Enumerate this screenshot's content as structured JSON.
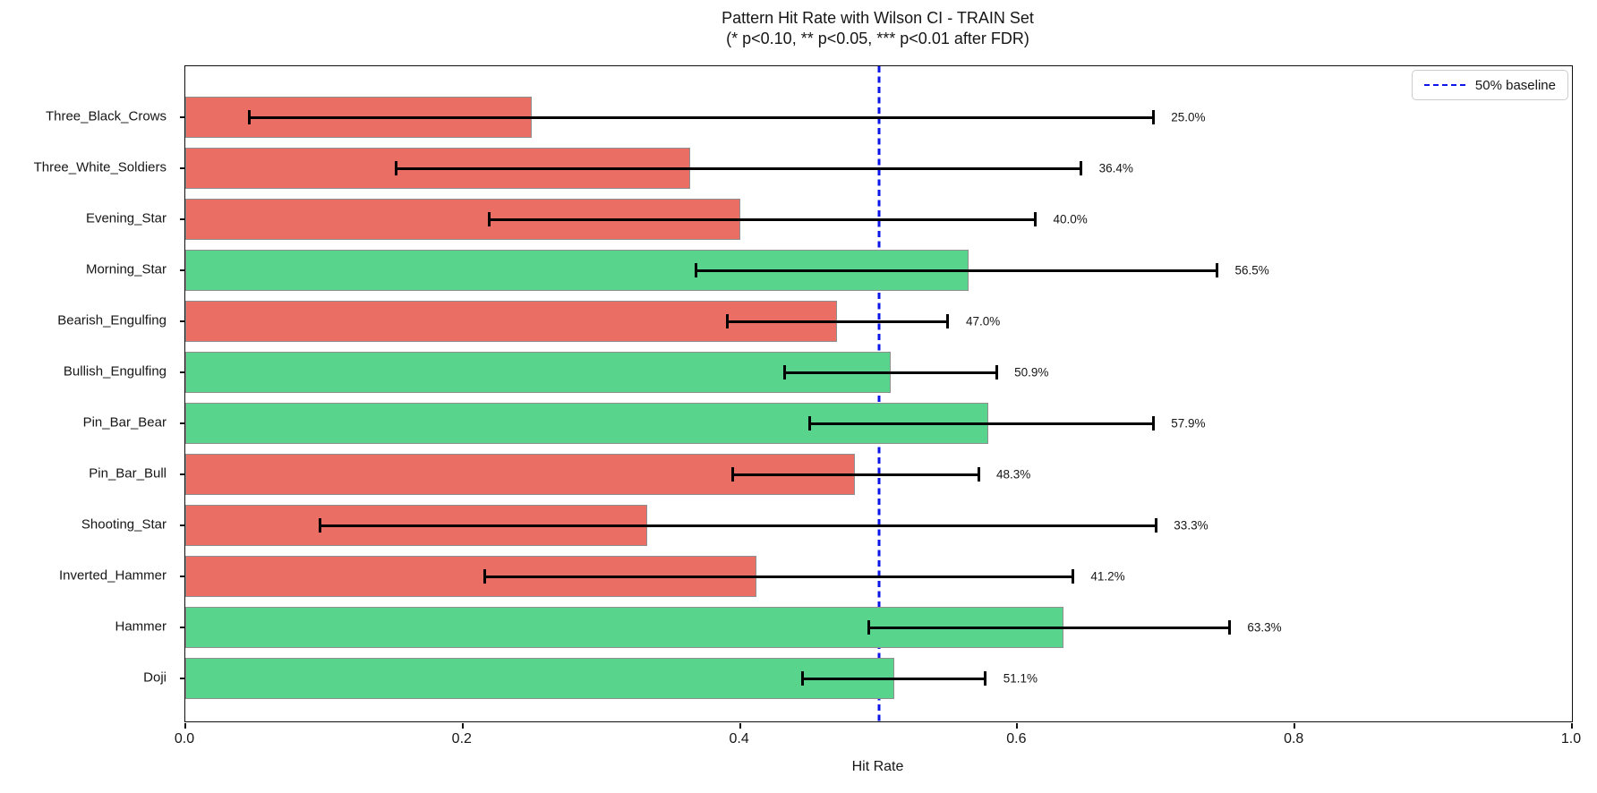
{
  "title": "Pattern Hit Rate with Wilson CI - TRAIN Set",
  "subtitle": "(* p<0.10, ** p<0.05, *** p<0.01 after FDR)",
  "xlabel": "Hit Rate",
  "legend": {
    "baseline_label": "50% baseline"
  },
  "colors": {
    "green": "#59d48c",
    "red": "#ea6e63",
    "bar_edge": "#8f8f8f",
    "baseline": "#0d16e8",
    "error_bar": "#000000"
  },
  "chart_data": {
    "type": "bar",
    "orientation": "horizontal",
    "title": "Pattern Hit Rate with Wilson CI - TRAIN Set",
    "subtitle": "(* p<0.10, ** p<0.05, *** p<0.01 after FDR)",
    "xlabel": "Hit Rate",
    "ylabel": "",
    "xlim": [
      0.0,
      1.0
    ],
    "x_ticks": [
      0.0,
      0.2,
      0.4,
      0.6,
      0.8,
      1.0
    ],
    "x_tick_labels": [
      "0.0",
      "0.2",
      "0.4",
      "0.6",
      "0.8",
      "1.0"
    ],
    "grid": false,
    "legend_position": "upper right",
    "baseline": {
      "x": 0.5,
      "label": "50% baseline",
      "style": "dashed",
      "color_key": "baseline"
    },
    "bars": [
      {
        "category": "Three_Black_Crows",
        "value": 0.25,
        "label": "25.0%",
        "ci_low": 0.046,
        "ci_high": 0.698,
        "color": "red"
      },
      {
        "category": "Three_White_Soldiers",
        "value": 0.364,
        "label": "36.4%",
        "ci_low": 0.152,
        "ci_high": 0.646,
        "color": "red"
      },
      {
        "category": "Evening_Star",
        "value": 0.4,
        "label": "40.0%",
        "ci_low": 0.219,
        "ci_high": 0.613,
        "color": "red"
      },
      {
        "category": "Morning_Star",
        "value": 0.565,
        "label": "56.5%",
        "ci_low": 0.368,
        "ci_high": 0.744,
        "color": "green"
      },
      {
        "category": "Bearish_Engulfing",
        "value": 0.47,
        "label": "47.0%",
        "ci_low": 0.391,
        "ci_high": 0.55,
        "color": "red"
      },
      {
        "category": "Bullish_Engulfing",
        "value": 0.509,
        "label": "50.9%",
        "ci_low": 0.432,
        "ci_high": 0.585,
        "color": "green"
      },
      {
        "category": "Pin_Bar_Bear",
        "value": 0.579,
        "label": "57.9%",
        "ci_low": 0.45,
        "ci_high": 0.698,
        "color": "green"
      },
      {
        "category": "Pin_Bar_Bull",
        "value": 0.483,
        "label": "48.3%",
        "ci_low": 0.395,
        "ci_high": 0.572,
        "color": "red"
      },
      {
        "category": "Shooting_Star",
        "value": 0.333,
        "label": "33.3%",
        "ci_low": 0.097,
        "ci_high": 0.7,
        "color": "red"
      },
      {
        "category": "Inverted_Hammer",
        "value": 0.412,
        "label": "41.2%",
        "ci_low": 0.216,
        "ci_high": 0.64,
        "color": "red"
      },
      {
        "category": "Hammer",
        "value": 0.633,
        "label": "63.3%",
        "ci_low": 0.493,
        "ci_high": 0.753,
        "color": "green"
      },
      {
        "category": "Doji",
        "value": 0.511,
        "label": "51.1%",
        "ci_low": 0.445,
        "ci_high": 0.577,
        "color": "green"
      }
    ]
  }
}
